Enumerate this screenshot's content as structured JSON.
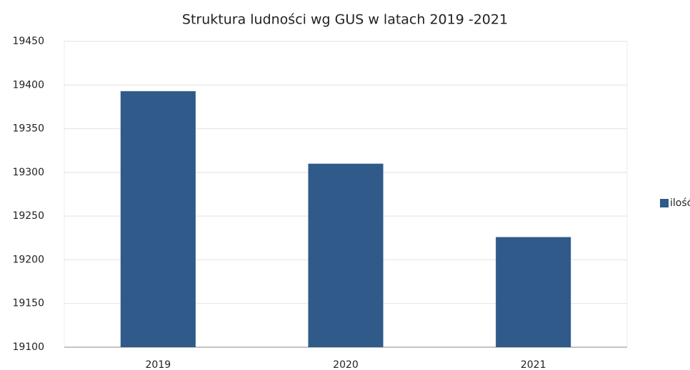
{
  "chart_data": {
    "type": "bar",
    "title": "Struktura ludności wg GUS w latach 2019 -2021",
    "categories": [
      "2019",
      "2020",
      "2021"
    ],
    "series": [
      {
        "name": "ilość",
        "color": "#2f5a8a",
        "values": [
          19393,
          19310,
          19226
        ]
      }
    ],
    "ylim": [
      19100,
      19450
    ],
    "yticks": [
      19100,
      19150,
      19200,
      19250,
      19300,
      19350,
      19400,
      19450
    ],
    "grid": true,
    "legend": "right"
  }
}
